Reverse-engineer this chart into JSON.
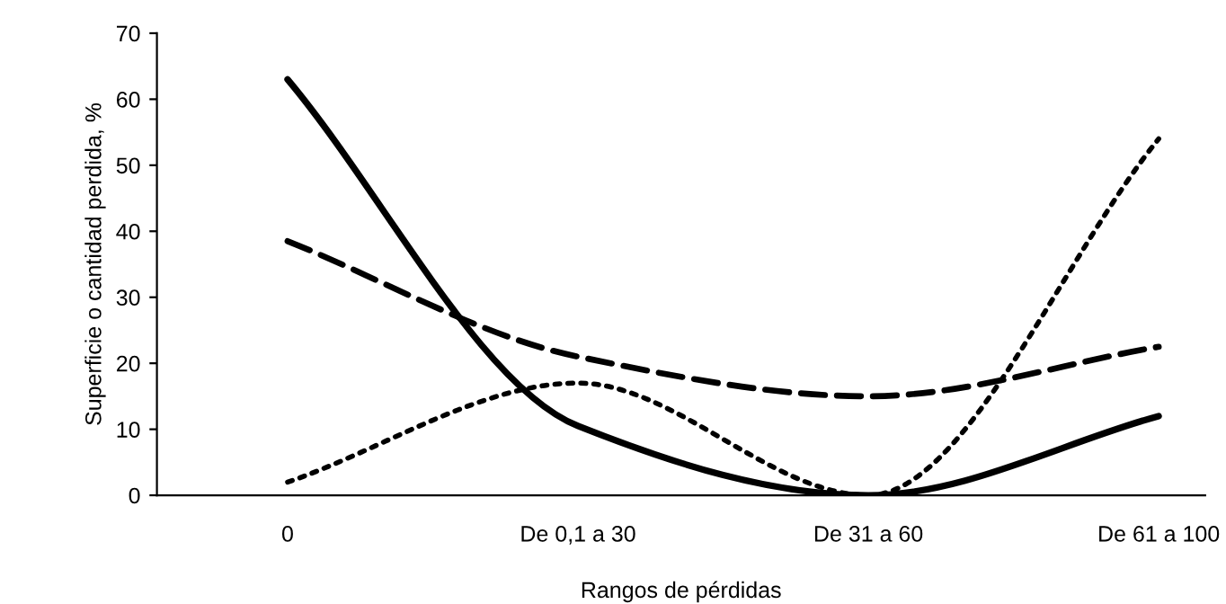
{
  "chart_data": {
    "type": "line",
    "xlabel": "Rangos de pérdidas",
    "ylabel": "Superficie o cantidad perdida, %",
    "categories": [
      "0",
      "De 0,1 a 30",
      "De 31 a 60",
      "De 61 a 100"
    ],
    "series": [
      {
        "color": "#000000",
        "line_style": "solid",
        "values": [
          63,
          10.5,
          0,
          12
        ]
      },
      {
        "color": "#000000",
        "line_style": "dashed",
        "values": [
          38.5,
          21,
          15,
          22.5
        ]
      },
      {
        "color": "#000000",
        "line_style": "dotted",
        "values": [
          2,
          17,
          0,
          54
        ]
      }
    ],
    "ylim": [
      0,
      70
    ],
    "yticks": [
      0,
      10,
      20,
      30,
      40,
      50,
      60,
      70
    ],
    "grid": false,
    "legend": false,
    "marker": "none"
  }
}
